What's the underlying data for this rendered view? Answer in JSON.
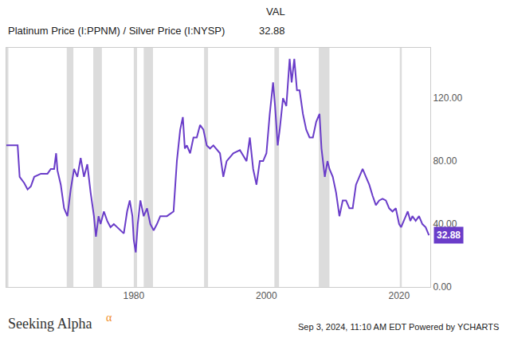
{
  "chart_data": {
    "type": "line",
    "annotations": {
      "header": "VAL",
      "source": "Seeking Alpha",
      "source_mark": "α",
      "footer": "Sep 3, 2024, 11:10 AM EDT Powered by YCHARTS"
    },
    "series": [
      {
        "name": "Platinum Price (I:PPNM) / Silver Price (I:NYSP)",
        "color": "#6a3dc9",
        "x": [
          1960.8,
          1962.5,
          1962.8,
          1963.5,
          1964,
          1964.5,
          1965,
          1966,
          1967,
          1967.5,
          1968,
          1968.3,
          1968.5,
          1969,
          1969.5,
          1970,
          1970.5,
          1971,
          1971.5,
          1972,
          1972.5,
          1973,
          1973.5,
          1974,
          1974.3,
          1974.7,
          1975,
          1975.5,
          1976,
          1976.5,
          1977,
          1978,
          1978.5,
          1979,
          1979.4,
          1979.8,
          1980,
          1980.3,
          1980.6,
          1981,
          1981.5,
          1982,
          1982.5,
          1983,
          1983.5,
          1984,
          1985,
          1986,
          1986.5,
          1987,
          1987.4,
          1987.7,
          1988,
          1988.5,
          1989,
          1989.5,
          1990,
          1990.5,
          1991,
          1991.5,
          1992,
          1993,
          1993.5,
          1994,
          1995,
          1996,
          1997,
          1997.5,
          1998,
          1998.5,
          1999,
          1999.5,
          2000,
          2000.5,
          2001,
          2001.3,
          2001.7,
          2002,
          2002.5,
          2003,
          2003.5,
          2003.8,
          2004.2,
          2004.6,
          2005,
          2005.5,
          2006,
          2006.5,
          2007,
          2007.5,
          2008,
          2008.3,
          2008.8,
          2009.2,
          2009.5,
          2010,
          2010.5,
          2011,
          2011.5,
          2012,
          2012.5,
          2013,
          2013.5,
          2014,
          2014.5,
          2015,
          2015.5,
          2016,
          2016.5,
          2017,
          2017.5,
          2018,
          2018.5,
          2019,
          2019.5,
          2020,
          2020.3,
          2020.7,
          2021,
          2021.3,
          2021.7,
          2022,
          2022.5,
          2023,
          2023.5,
          2024,
          2024.5
        ],
        "values": [
          90,
          90,
          70,
          66,
          62,
          64,
          70,
          72,
          72,
          75,
          75,
          85,
          74,
          65,
          50,
          45,
          62,
          75,
          70,
          82,
          70,
          78,
          60,
          45,
          32,
          45,
          40,
          48,
          42,
          38,
          40,
          36,
          34,
          48,
          55,
          45,
          30,
          22,
          40,
          55,
          45,
          50,
          40,
          36,
          40,
          45,
          45,
          48,
          80,
          100,
          108,
          88,
          90,
          85,
          95,
          95,
          103,
          100,
          90,
          88,
          90,
          85,
          70,
          80,
          85,
          87,
          80,
          95,
          75,
          65,
          80,
          80,
          85,
          110,
          130,
          115,
          90,
          100,
          120,
          115,
          145,
          130,
          145,
          125,
          125,
          110,
          100,
          95,
          95,
          105,
          110,
          88,
          70,
          80,
          75,
          70,
          60,
          45,
          55,
          55,
          50,
          50,
          65,
          70,
          75,
          70,
          65,
          58,
          52,
          55,
          56,
          55,
          50,
          48,
          50,
          40,
          38,
          42,
          45,
          48,
          42,
          45,
          42,
          45,
          40,
          38,
          32.88
        ]
      }
    ],
    "recessions": [
      [
        1960.3,
        1961.1
      ],
      [
        1969.9,
        1970.9
      ],
      [
        1973.9,
        1975.2
      ],
      [
        1980.0,
        1980.5
      ],
      [
        1981.5,
        1982.9
      ],
      [
        1990.6,
        1991.2
      ],
      [
        2001.2,
        2001.9
      ],
      [
        2007.9,
        2009.5
      ],
      [
        2020.1,
        2020.4
      ]
    ],
    "xlim": [
      1960.8,
      2024.7
    ],
    "xticks": [
      1980,
      2000,
      2020
    ],
    "ylim": [
      0,
      152
    ],
    "yticks": [
      {
        "value": 0,
        "label": "0.00"
      },
      {
        "value": 40,
        "label": "40.00"
      },
      {
        "value": 80,
        "label": "80.00"
      },
      {
        "value": 120,
        "label": "120.00"
      }
    ],
    "grid": false
  }
}
